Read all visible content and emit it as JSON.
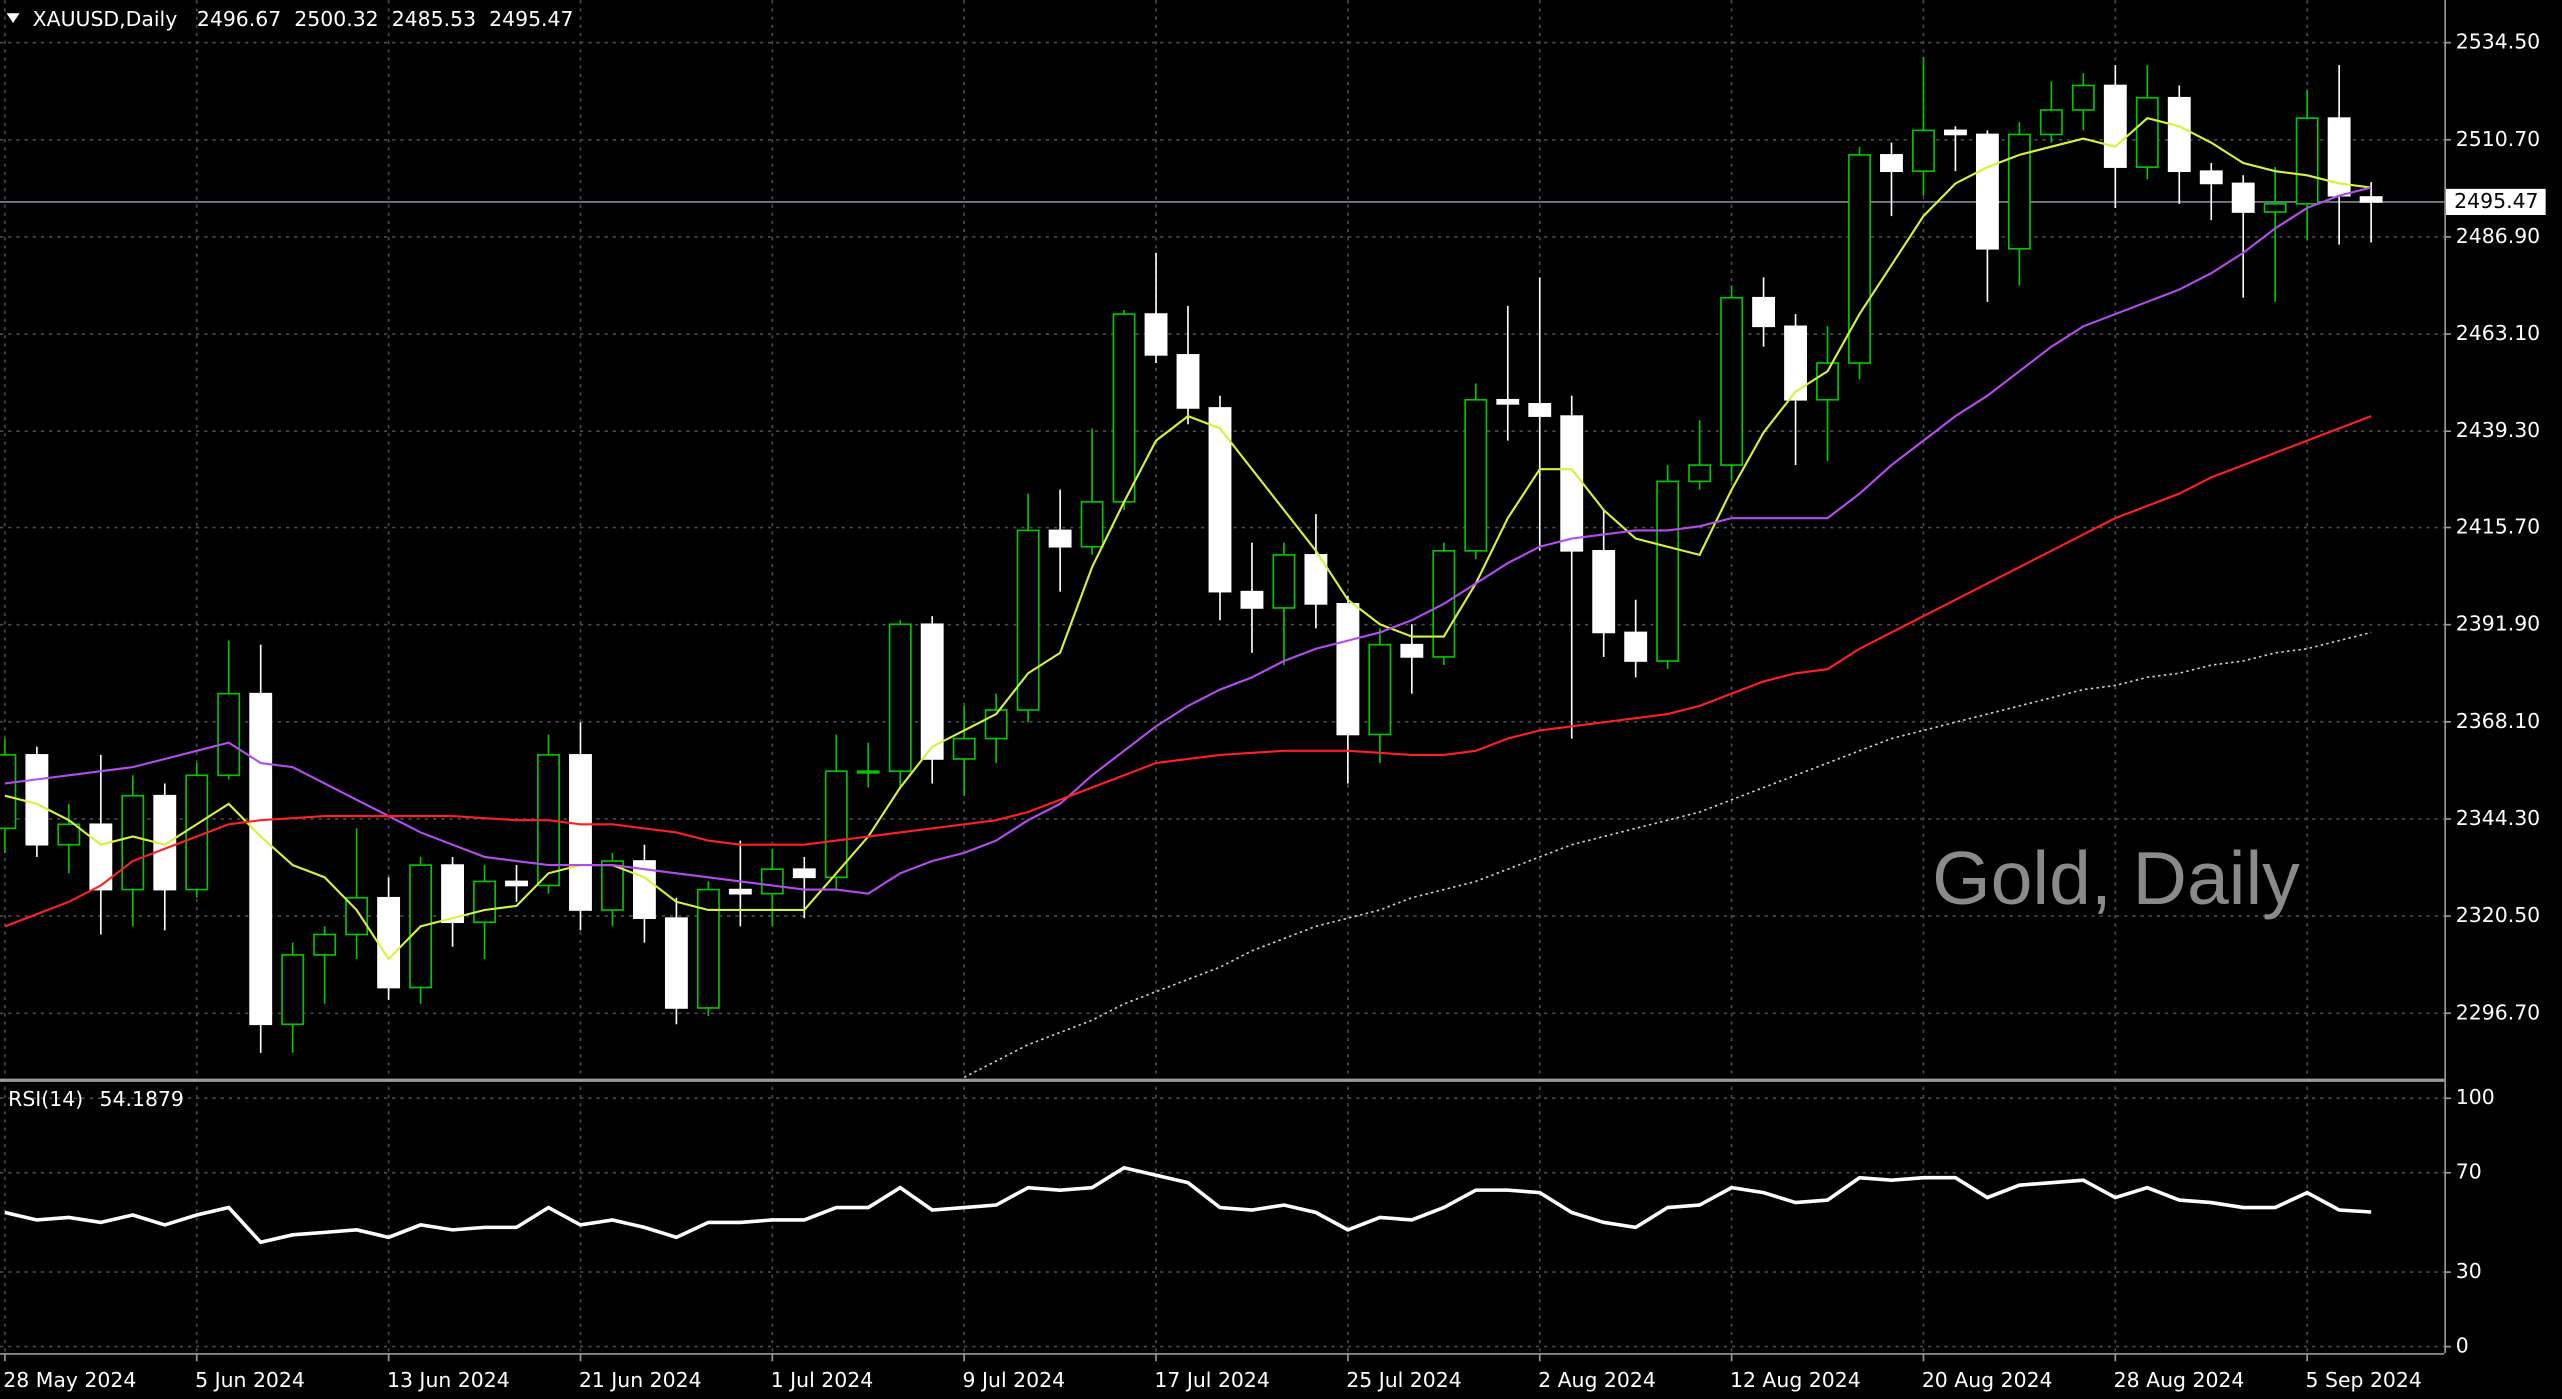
{
  "chart_data": [
    {
      "type": "candlestick",
      "title": "XAUUSD,Daily",
      "watermark": "Gold, Daily",
      "categories": [
        "28 May 2024",
        null,
        null,
        null,
        null,
        null,
        "5 Jun 2024",
        null,
        null,
        null,
        null,
        null,
        "13 Jun 2024",
        null,
        null,
        null,
        null,
        null,
        "21 Jun 2024",
        null,
        null,
        null,
        null,
        null,
        "1 Jul 2024",
        null,
        null,
        null,
        null,
        null,
        "9 Jul 2024",
        null,
        null,
        null,
        null,
        null,
        "17 Jul 2024",
        null,
        null,
        null,
        null,
        null,
        "25 Jul 2024",
        null,
        null,
        null,
        null,
        null,
        "2 Aug 2024",
        null,
        null,
        null,
        null,
        null,
        "12 Aug 2024",
        null,
        null,
        null,
        null,
        null,
        "20 Aug 2024",
        null,
        null,
        null,
        null,
        null,
        "28 Aug 2024",
        null,
        null,
        null,
        null,
        null,
        "5 Sep 2024",
        null,
        null
      ],
      "open": [
        2342,
        2360,
        2338,
        2343,
        2327,
        2350,
        2327,
        2355,
        2375,
        2294,
        2311,
        2316,
        2325,
        2303,
        2333,
        2319,
        2329,
        2328,
        2360,
        2322,
        2334,
        2320,
        2298,
        2327,
        2326,
        2332,
        2330,
        2356,
        2356,
        2392,
        2359,
        2364,
        2371,
        2415,
        2411,
        2422,
        2468,
        2458,
        2445,
        2400,
        2396,
        2409,
        2397,
        2365,
        2387,
        2384,
        2410,
        2447,
        2446,
        2443,
        2410,
        2390,
        2383,
        2427,
        2431,
        2472,
        2465,
        2447,
        2456,
        2507,
        2503,
        2513,
        2512,
        2484,
        2512,
        2518,
        2524,
        2504,
        2521,
        2503,
        2500,
        2493,
        2495,
        2516,
        2496.67
      ],
      "high": [
        2364,
        2362,
        2348,
        2360,
        2355,
        2353,
        2358,
        2388,
        2387,
        2314,
        2318,
        2342,
        2330,
        2335,
        2335,
        2333,
        2333,
        2365,
        2368,
        2336,
        2338,
        2325,
        2329,
        2339,
        2337,
        2335,
        2365,
        2363,
        2393,
        2394,
        2372,
        2375,
        2424,
        2425,
        2440,
        2469,
        2483,
        2470,
        2448,
        2412,
        2412,
        2419,
        2399,
        2391,
        2392,
        2412,
        2451,
        2470,
        2477,
        2448,
        2420,
        2398,
        2431,
        2442,
        2475,
        2477,
        2468,
        2465,
        2509,
        2510,
        2531,
        2514,
        2513,
        2515,
        2525,
        2527,
        2529,
        2529,
        2524,
        2505,
        2502,
        2504,
        2523,
        2529,
        2500.32
      ],
      "low": [
        2336,
        2335,
        2331,
        2316,
        2318,
        2317,
        2325,
        2354,
        2287,
        2287,
        2299,
        2310,
        2300,
        2299,
        2313,
        2310,
        2324,
        2326,
        2317,
        2318,
        2314,
        2294,
        2296,
        2318,
        2318,
        2320,
        2327,
        2352,
        2352,
        2353,
        2350,
        2358,
        2368,
        2400,
        2409,
        2420,
        2456,
        2441,
        2393,
        2385,
        2382,
        2391,
        2353,
        2358,
        2375,
        2382,
        2408,
        2437,
        2410,
        2364,
        2384,
        2379,
        2381,
        2425,
        2427,
        2460,
        2431,
        2432,
        2452,
        2492,
        2497,
        2503,
        2471,
        2475,
        2510,
        2513,
        2494,
        2501,
        2495,
        2491,
        2472,
        2471,
        2486,
        2485,
        2485.53
      ],
      "close": [
        2360,
        2338,
        2343,
        2327,
        2350,
        2327,
        2355,
        2375,
        2294,
        2311,
        2316,
        2325,
        2303,
        2333,
        2319,
        2329,
        2328,
        2360,
        2322,
        2334,
        2320,
        2298,
        2327,
        2326,
        2332,
        2330,
        2356,
        2356,
        2392,
        2359,
        2364,
        2371,
        2415,
        2411,
        2422,
        2468,
        2458,
        2445,
        2400,
        2396,
        2409,
        2397,
        2365,
        2387,
        2384,
        2410,
        2447,
        2446,
        2443,
        2410,
        2390,
        2383,
        2427,
        2431,
        2472,
        2465,
        2447,
        2456,
        2507,
        2503,
        2513,
        2512,
        2484,
        2512,
        2518,
        2524,
        2504,
        2521,
        2503,
        2500,
        2493,
        2495,
        2516,
        2497,
        2495.47
      ],
      "up_color": "#00c800",
      "down_color": "#ffffff",
      "series": [
        {
          "color": "#d8f23a",
          "style": "solid",
          "values": [
            2350,
            2348,
            2344,
            2338,
            2340,
            2338,
            2343,
            2348,
            2340,
            2333,
            2330,
            2322,
            2310,
            2318,
            2320,
            2322,
            2323,
            2331,
            2333,
            2333,
            2330,
            2324,
            2322,
            2322,
            2322,
            2322,
            2331,
            2340,
            2352,
            2362,
            2366,
            2370,
            2380,
            2385,
            2406,
            2422,
            2437,
            2443,
            2440,
            2430,
            2420,
            2410,
            2398,
            2392,
            2389,
            2389,
            2402,
            2418,
            2430,
            2430,
            2420,
            2413,
            2411,
            2409,
            2425,
            2439,
            2449,
            2454,
            2468,
            2480,
            2492,
            2500,
            2504,
            2507,
            2509,
            2511,
            2509,
            2516,
            2514,
            2510,
            2505,
            2503,
            2502,
            2500,
            2499
          ]
        },
        {
          "color": "#b44cf0",
          "style": "solid",
          "values": [
            2353,
            2354,
            2355,
            2356,
            2357,
            2359,
            2361,
            2363,
            2358,
            2357,
            2353,
            2349,
            2345,
            2341,
            2338,
            2335,
            2334,
            2333,
            2333,
            2333,
            2332,
            2331,
            2330,
            2329,
            2328,
            2327,
            2327,
            2326,
            2331,
            2334,
            2336,
            2339,
            2344,
            2348,
            2355,
            2361,
            2367,
            2372,
            2376,
            2379,
            2383,
            2386,
            2388,
            2390,
            2393,
            2397,
            2402,
            2407,
            2411,
            2413,
            2414,
            2415,
            2415,
            2416,
            2418,
            2418,
            2418,
            2418,
            2424,
            2431,
            2437,
            2443,
            2448,
            2454,
            2460,
            2465,
            2468,
            2471,
            2474,
            2478,
            2483,
            2489,
            2494,
            2497,
            2499
          ]
        },
        {
          "color": "#ff2020",
          "style": "solid",
          "values": [
            2318,
            2321,
            2324,
            2328,
            2334,
            2337,
            2340,
            2343,
            2344,
            2344.5,
            2345,
            2345,
            2345,
            2345,
            2345,
            2344.5,
            2344,
            2344,
            2343,
            2343,
            2342,
            2341,
            2339,
            2338,
            2338,
            2338,
            2339,
            2340,
            2341,
            2342,
            2343,
            2344,
            2346,
            2349,
            2352,
            2355,
            2358,
            2359,
            2360,
            2360.5,
            2361,
            2361,
            2361,
            2360.5,
            2360,
            2360,
            2361,
            2364,
            2366,
            2367,
            2368,
            2369,
            2370,
            2372,
            2375,
            2378,
            2380,
            2381,
            2386,
            2390,
            2394,
            2398,
            2402,
            2406,
            2410,
            2414,
            2418,
            2421,
            2424,
            2428,
            2431,
            2434,
            2437,
            2440,
            2443
          ]
        },
        {
          "color": "#cfcfcf",
          "style": "dotted",
          "values": [
            null,
            null,
            null,
            null,
            null,
            null,
            null,
            null,
            null,
            null,
            null,
            null,
            null,
            null,
            null,
            null,
            null,
            null,
            null,
            null,
            null,
            null,
            null,
            null,
            null,
            null,
            null,
            null,
            null,
            null,
            2281,
            2285,
            2289,
            2292,
            2295,
            2299,
            2302,
            2305,
            2308,
            2312,
            2315,
            2318,
            2320,
            2322,
            2325,
            2327,
            2329,
            2332,
            2335,
            2338,
            2340,
            2342,
            2344,
            2346,
            2349,
            2352,
            2355,
            2358,
            2361,
            2364,
            2366,
            2368,
            2370,
            2372,
            2374,
            2376,
            2377,
            2379,
            2380,
            2382,
            2383,
            2385,
            2386,
            2388,
            2390
          ]
        }
      ],
      "ylim": [
        2280.7,
        2544.9
      ],
      "yticks": [
        {
          "value": 2534.5,
          "label": "2534.50"
        },
        {
          "value": 2510.7,
          "label": "2510.70"
        },
        {
          "value": 2486.9,
          "label": "2486.90"
        },
        {
          "value": 2463.1,
          "label": "2463.10"
        },
        {
          "value": 2439.3,
          "label": "2439.30"
        },
        {
          "value": 2415.7,
          "label": "2415.70"
        },
        {
          "value": 2391.9,
          "label": "2391.90"
        },
        {
          "value": 2368.1,
          "label": "2368.10"
        },
        {
          "value": 2344.3,
          "label": "2344.30"
        },
        {
          "value": 2320.5,
          "label": "2320.50"
        },
        {
          "value": 2296.7,
          "label": "2296.70"
        }
      ],
      "grid": true
    },
    {
      "type": "line",
      "title": "RSI(14)",
      "series": [
        {
          "color": "#ffffff",
          "style": "solid",
          "values": [
            54,
            51,
            52,
            50,
            53,
            49,
            53,
            56,
            42,
            45,
            46,
            47,
            44,
            49,
            47,
            48,
            48,
            56,
            49,
            51,
            48,
            44,
            50,
            50,
            51,
            51,
            56,
            56,
            64,
            55,
            56,
            57,
            64,
            63,
            64,
            72,
            69,
            66,
            56,
            55,
            57,
            54,
            47,
            52,
            51,
            56,
            63,
            63,
            62,
            54,
            50,
            48,
            56,
            57,
            64,
            62,
            58,
            59,
            68,
            67,
            68,
            68,
            60,
            65,
            66,
            67,
            60,
            64,
            59,
            58,
            56,
            56,
            62,
            55,
            54.1879
          ]
        }
      ],
      "ylim": [
        -2.6,
        106.6
      ],
      "yticks": [
        100,
        70,
        30,
        0
      ],
      "grid": true
    }
  ]
}
